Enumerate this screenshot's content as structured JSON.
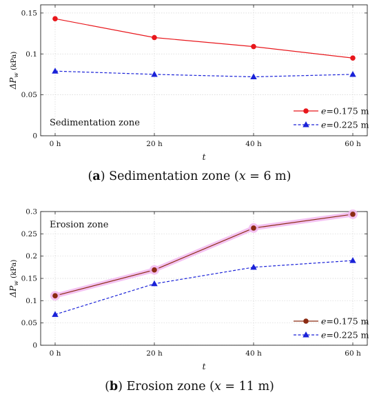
{
  "chart_data": [
    {
      "type": "line",
      "panel_label": "a",
      "caption": "Sedimentation zone (x = 6 m)",
      "caption_parts": {
        "text": "Sedimentation zone (",
        "var": "x",
        "rest": " = 6 m)"
      },
      "annotation": "Sedimentation zone",
      "xlabel": "t",
      "ylabel": "ΔP",
      "ylabel_sub": "w",
      "ylabel_unit": " (kPa)",
      "categories": [
        "0 h",
        "20 h",
        "40 h",
        "60 h"
      ],
      "ylim": [
        0,
        0.16
      ],
      "yticks": [
        0,
        0.05,
        0.1,
        0.15
      ],
      "ytick_labels": [
        "0",
        "0.05",
        "0.1",
        "0.15"
      ],
      "grid": true,
      "legend": "bottom-right",
      "series": [
        {
          "name": "e=0.175 m",
          "name_var": "e",
          "name_rest": "=0.175 m",
          "values": [
            0.143,
            0.12,
            0.109,
            0.095
          ],
          "color": "#e8161b",
          "dash": "solid",
          "marker": "circle"
        },
        {
          "name": "e=0.225 m",
          "name_var": "e",
          "name_rest": "=0.225 m",
          "values": [
            0.079,
            0.075,
            0.072,
            0.075
          ],
          "color": "#1a22d8",
          "dash": "dashed",
          "marker": "triangle"
        }
      ]
    },
    {
      "type": "line",
      "panel_label": "b",
      "caption": "Erosion zone (x = 11 m)",
      "caption_parts": {
        "text": "Erosion zone (",
        "var": "x",
        "rest": " = 11 m)"
      },
      "annotation": "Erosion zone",
      "xlabel": "t",
      "ylabel": "ΔP",
      "ylabel_sub": "w",
      "ylabel_unit": " (kPa)",
      "categories": [
        "0 h",
        "20 h",
        "40 h",
        "60 h"
      ],
      "ylim": [
        0,
        0.3
      ],
      "yticks": [
        0,
        0.05,
        0.1,
        0.15,
        0.2,
        0.25,
        0.3
      ],
      "ytick_labels": [
        "0",
        "0.05",
        "0.1",
        "0.15",
        "0.2",
        "0.25",
        "0.3"
      ],
      "grid": true,
      "legend": "bottom-right",
      "series": [
        {
          "name": "e=0.175 m",
          "name_var": "e",
          "name_rest": "=0.175 m",
          "values": [
            0.111,
            0.169,
            0.263,
            0.294
          ],
          "color": "#8b2a12",
          "dash": "solid",
          "marker": "circle",
          "glow": "#f2b8f0"
        },
        {
          "name": "e=0.225 m",
          "name_var": "e",
          "name_rest": "=0.225 m",
          "values": [
            0.069,
            0.138,
            0.175,
            0.19
          ],
          "color": "#1a22d8",
          "dash": "dashed",
          "marker": "triangle"
        }
      ]
    }
  ]
}
